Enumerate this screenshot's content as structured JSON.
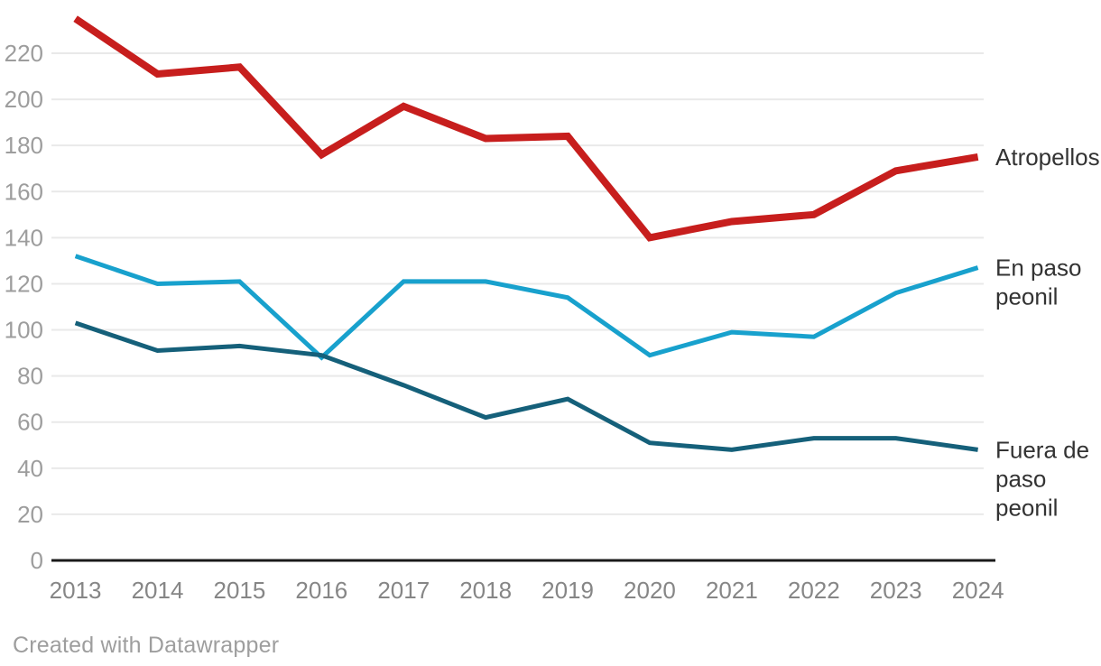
{
  "chart_data": {
    "type": "line",
    "x": [
      2013,
      2014,
      2015,
      2016,
      2017,
      2018,
      2019,
      2020,
      2021,
      2022,
      2023,
      2024
    ],
    "series": [
      {
        "name": "Atropellos",
        "label_lines": [
          "Atropellos"
        ],
        "color": "#c71e1d",
        "stroke_width": 8,
        "values": [
          235,
          211,
          214,
          176,
          197,
          183,
          184,
          140,
          147,
          150,
          169,
          175
        ]
      },
      {
        "name": "En paso peonil",
        "label_lines": [
          "En paso",
          "peonil"
        ],
        "color": "#18a1cd",
        "stroke_width": 5,
        "values": [
          132,
          120,
          121,
          88,
          121,
          121,
          114,
          89,
          99,
          97,
          116,
          127
        ]
      },
      {
        "name": "Fuera de paso peonil",
        "label_lines": [
          "Fuera de",
          "paso",
          "peonil"
        ],
        "color": "#15607a",
        "stroke_width": 5,
        "values": [
          103,
          91,
          93,
          89,
          76,
          62,
          70,
          51,
          48,
          53,
          53,
          48
        ]
      }
    ],
    "title": "",
    "xlabel": "",
    "ylabel": "",
    "ylim": [
      0,
      220
    ],
    "yticks": [
      0,
      20,
      40,
      60,
      80,
      100,
      120,
      140,
      160,
      180,
      200,
      220
    ],
    "grid": true,
    "legend_position": "direct-labels-right",
    "colors": {
      "grid_line": "#e9e9e9",
      "axis_line": "#1a1a1a",
      "y_tick_label": "#9d9d9d",
      "x_tick_label": "#868686",
      "series_label": "#333333"
    }
  },
  "footer": {
    "text": "Created with Datawrapper"
  }
}
